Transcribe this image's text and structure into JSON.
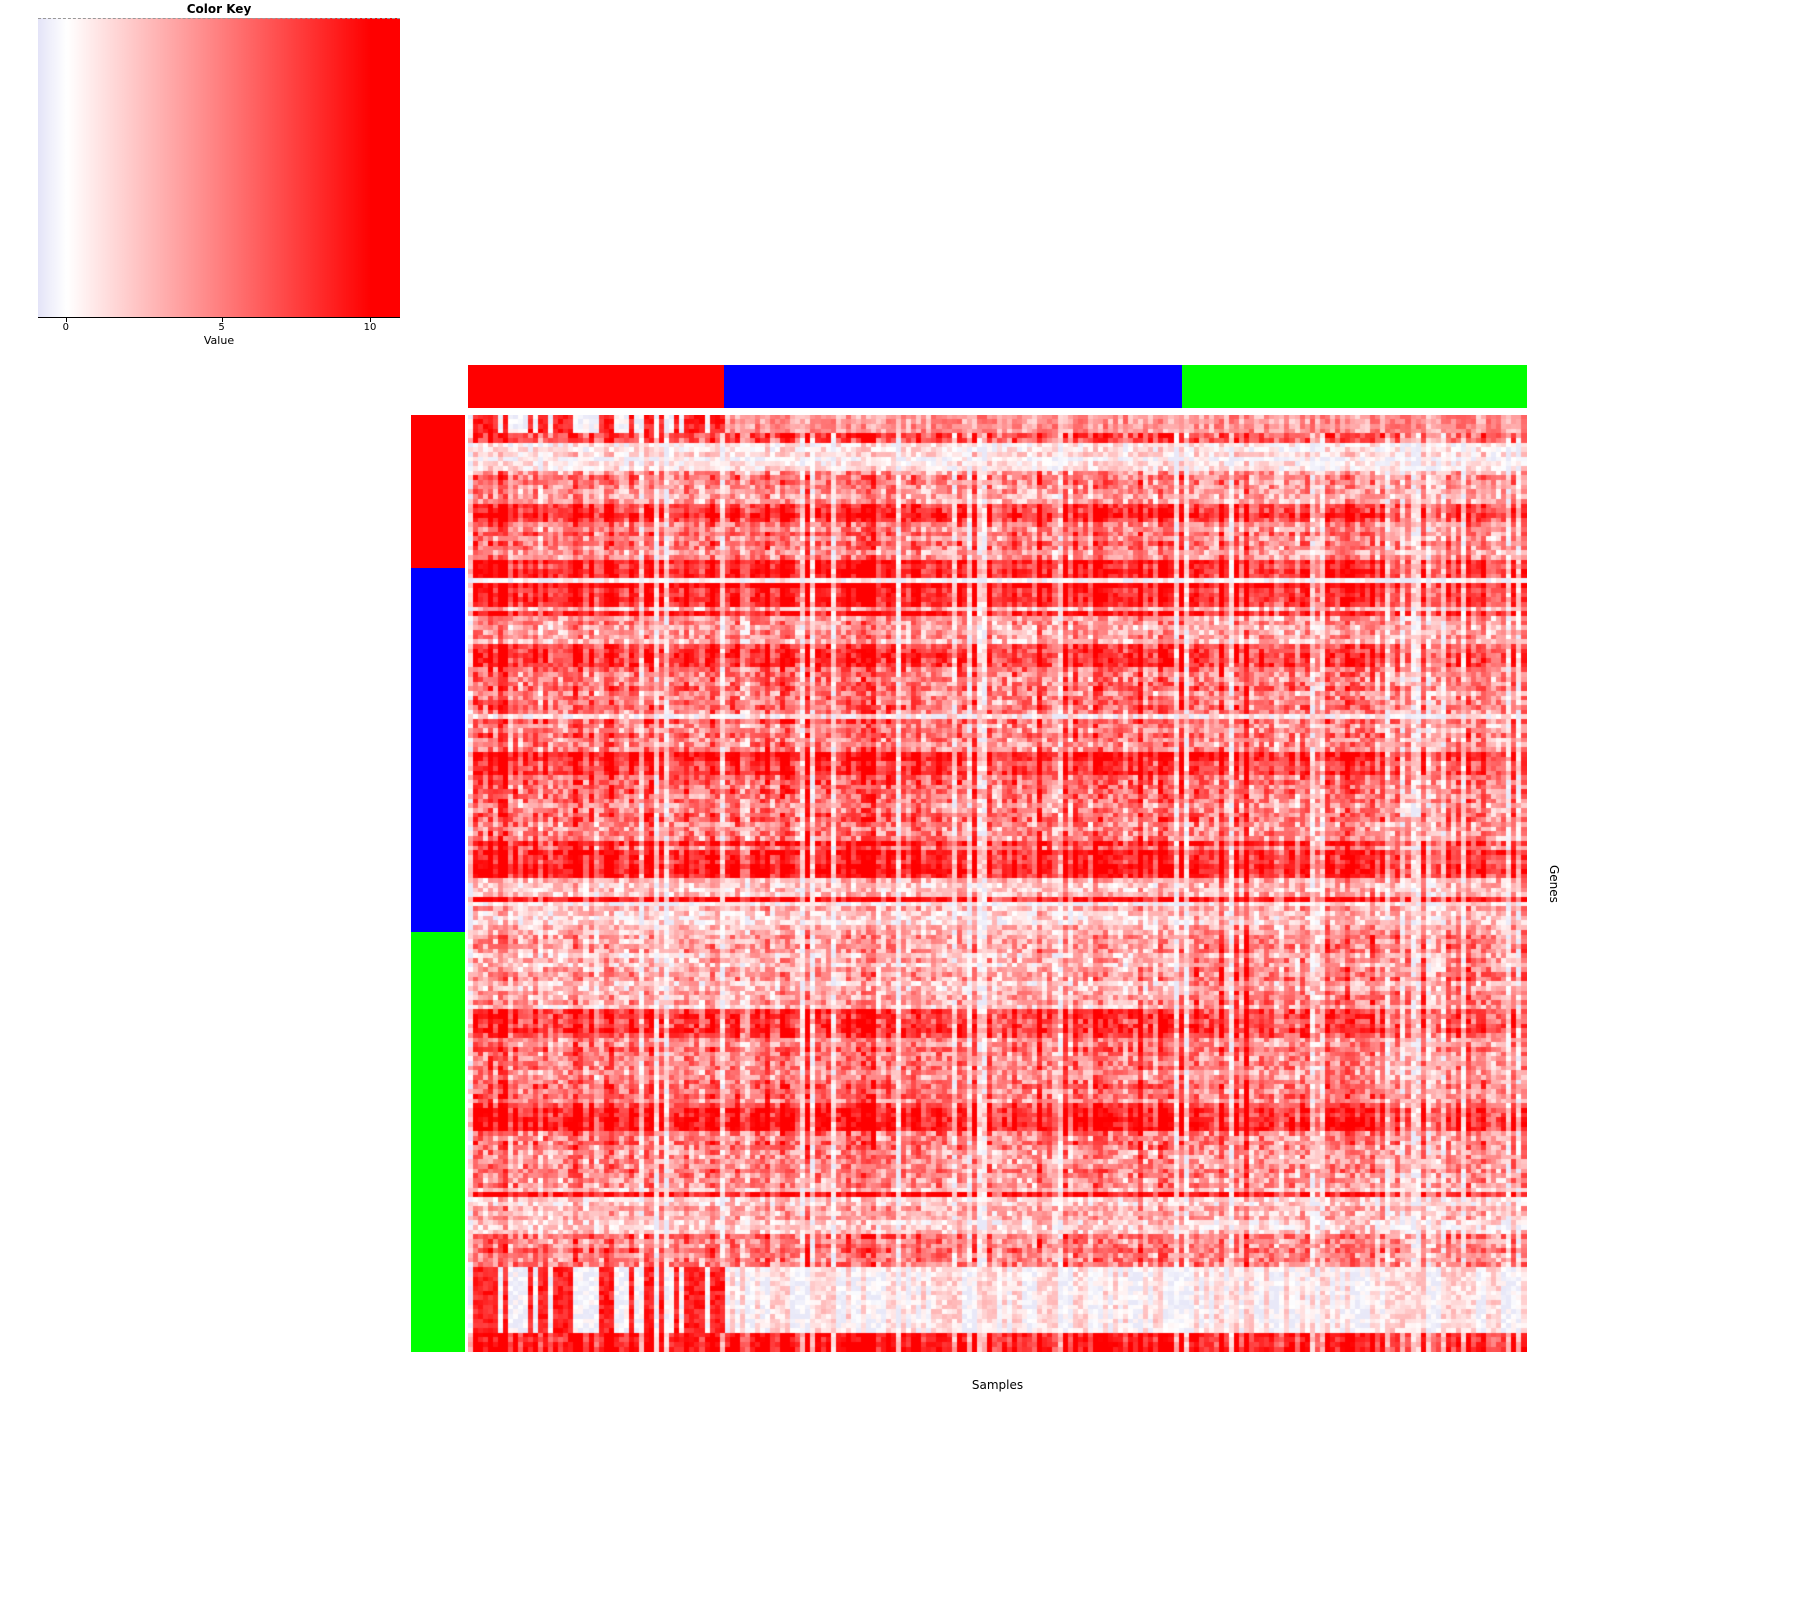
{
  "chart_data": {
    "type": "heatmap",
    "xlabel": "Samples",
    "ylabel": "Genes",
    "color_key": {
      "title": "Color Key",
      "axis_label": "Value",
      "ticks": [
        {
          "label": "0",
          "pos": 0.077
        },
        {
          "label": "5",
          "pos": 0.507
        },
        {
          "label": "10",
          "pos": 0.917
        }
      ],
      "low_color": "#e4e4f8",
      "mid_color": "#ffffff",
      "high_color": "#ff0000",
      "value_range": [
        -1,
        11
      ]
    },
    "column_groups": [
      {
        "color": "#ff0000",
        "fraction": 0.242
      },
      {
        "color": "#0000ff",
        "fraction": 0.432
      },
      {
        "color": "#00ff00",
        "fraction": 0.326
      }
    ],
    "row_groups": [
      {
        "color": "#ff0000",
        "fraction": 0.163
      },
      {
        "color": "#0000ff",
        "fraction": 0.389
      },
      {
        "color": "#00ff00",
        "fraction": 0.448
      }
    ],
    "grid": false,
    "legend_position": "top-left",
    "n_rows": 200,
    "n_cols": 210,
    "render_seed": 1234,
    "row_band_profile": [
      {
        "from": 0.0,
        "to": 0.018,
        "intensity": 0.6,
        "noise": 0.3,
        "mode": "striped-left"
      },
      {
        "from": 0.018,
        "to": 0.03,
        "intensity": 0.72,
        "noise": 0.45
      },
      {
        "from": 0.03,
        "to": 0.059,
        "intensity": 0.18,
        "noise": 0.35
      },
      {
        "from": 0.059,
        "to": 0.091,
        "intensity": 0.5,
        "noise": 0.5
      },
      {
        "from": 0.091,
        "to": 0.112,
        "intensity": 0.85,
        "noise": 0.35
      },
      {
        "from": 0.112,
        "to": 0.155,
        "intensity": 0.55,
        "noise": 0.5
      },
      {
        "from": 0.155,
        "to": 0.203,
        "intensity": 0.92,
        "noise": 0.3
      },
      {
        "from": 0.203,
        "to": 0.243,
        "intensity": 0.45,
        "noise": 0.5
      },
      {
        "from": 0.243,
        "to": 0.267,
        "intensity": 0.82,
        "noise": 0.4
      },
      {
        "from": 0.267,
        "to": 0.36,
        "intensity": 0.6,
        "noise": 0.55
      },
      {
        "from": 0.36,
        "to": 0.384,
        "intensity": 0.85,
        "noise": 0.35
      },
      {
        "from": 0.384,
        "to": 0.47,
        "intensity": 0.58,
        "noise": 0.55
      },
      {
        "from": 0.47,
        "to": 0.494,
        "intensity": 0.9,
        "noise": 0.3
      },
      {
        "from": 0.494,
        "to": 0.555,
        "intensity": 0.3,
        "noise": 0.45,
        "right_boost": 0.15
      },
      {
        "from": 0.555,
        "to": 0.635,
        "intensity": 0.38,
        "noise": 0.5,
        "right_boost": 0.25
      },
      {
        "from": 0.635,
        "to": 0.662,
        "intensity": 0.78,
        "noise": 0.45
      },
      {
        "from": 0.662,
        "to": 0.731,
        "intensity": 0.58,
        "noise": 0.5
      },
      {
        "from": 0.731,
        "to": 0.763,
        "intensity": 0.85,
        "noise": 0.35
      },
      {
        "from": 0.763,
        "to": 0.822,
        "intensity": 0.55,
        "noise": 0.55
      },
      {
        "from": 0.822,
        "to": 0.872,
        "intensity": 0.33,
        "noise": 0.45
      },
      {
        "from": 0.872,
        "to": 0.907,
        "intensity": 0.6,
        "noise": 0.5
      },
      {
        "from": 0.907,
        "to": 0.977,
        "intensity": 0.16,
        "noise": 0.3,
        "mode": "striped-left"
      },
      {
        "from": 0.977,
        "to": 1.001,
        "intensity": 0.92,
        "noise": 0.25
      }
    ]
  }
}
